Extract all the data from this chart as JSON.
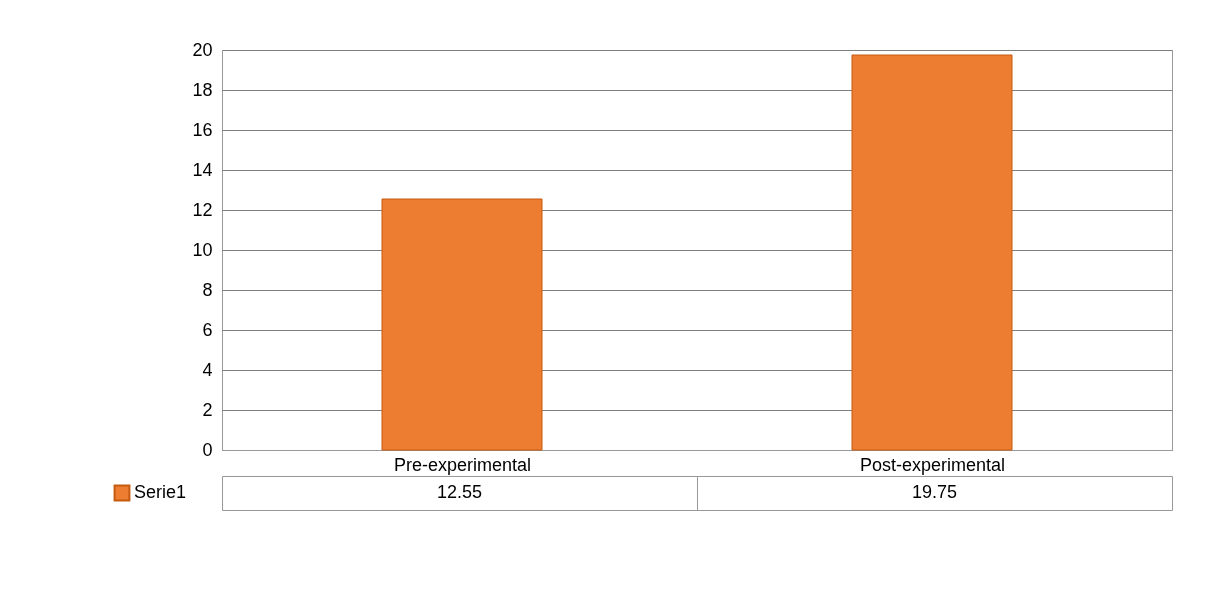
{
  "chart_data": {
    "type": "bar",
    "categories": [
      "Pre-experimental",
      "Post-experimental"
    ],
    "series": [
      {
        "name": "Serie1",
        "color": "#ed7d31",
        "values": [
          12.55,
          19.75
        ]
      }
    ],
    "ylim": [
      0,
      20
    ],
    "yticks": [
      0,
      2,
      4,
      6,
      8,
      10,
      12,
      14,
      16,
      18,
      20
    ],
    "grid": "y",
    "legend": "bottom left",
    "data_labels": true
  }
}
